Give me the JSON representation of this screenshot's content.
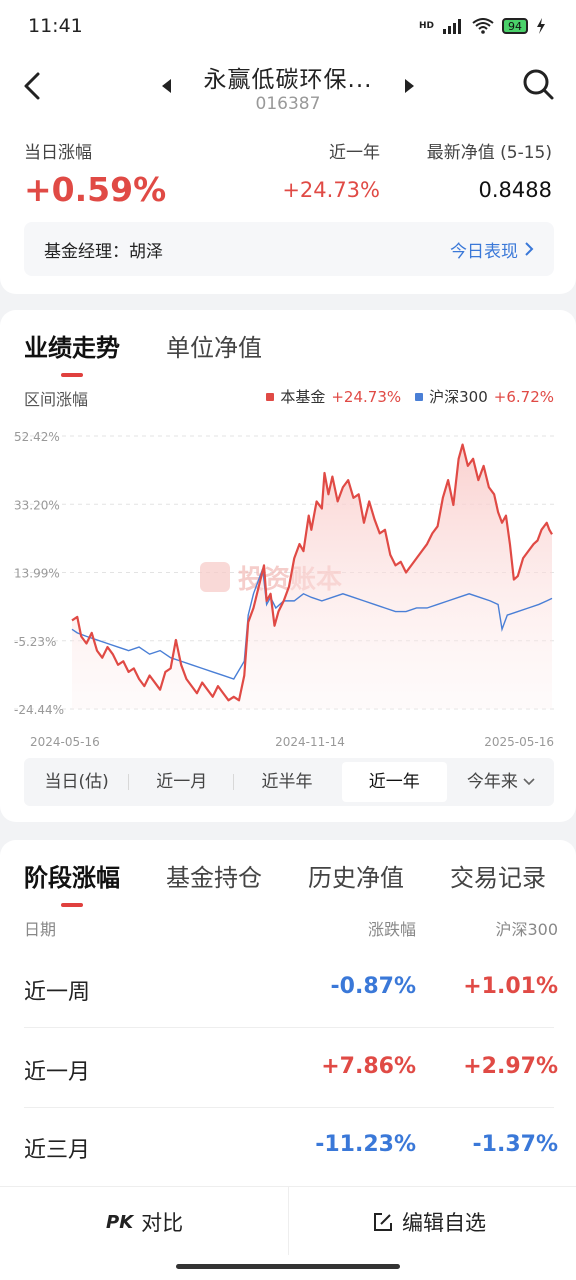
{
  "status": {
    "time": "11:41",
    "network": "HD",
    "battery": "94"
  },
  "header": {
    "title": "永赢低碳环保...",
    "code": "016387"
  },
  "summary": {
    "today_label": "当日涨幅",
    "today_value": "+0.59%",
    "year_label": "近一年",
    "year_value": "+24.73%",
    "nav_label": "最新净值 (5-15)",
    "nav_value": "0.8488",
    "manager_label": "基金经理：胡泽",
    "today_perf_link": "今日表现"
  },
  "chart_tabs": [
    {
      "label": "业绩走势",
      "active": true
    },
    {
      "label": "单位净值",
      "active": false
    }
  ],
  "range_label": "区间涨幅",
  "legend": [
    {
      "name": "本基金",
      "value": "+24.73%",
      "color": "#e04a45"
    },
    {
      "name": "沪深300",
      "value": "+6.72%",
      "color": "#4a7fd6"
    }
  ],
  "watermark": "投资账本",
  "chart_data": {
    "type": "line",
    "ytick_labels": [
      "52.42%",
      "33.20%",
      "13.99%",
      "-5.23%",
      "-24.44%"
    ],
    "yticks": [
      52.42,
      33.2,
      13.99,
      -5.23,
      -24.44
    ],
    "ylim": [
      -24.44,
      52.42
    ],
    "xtick_labels": [
      "2024-05-16",
      "2024-11-14",
      "2025-05-16"
    ],
    "x_start": "2024-05-16",
    "x_end": "2025-05-16",
    "grid": true,
    "series": [
      {
        "name": "本基金",
        "color": "#e04a45",
        "fill": true,
        "points": [
          [
            "2024-05-16",
            0.5
          ],
          [
            "2024-05-20",
            1.5
          ],
          [
            "2024-05-23",
            -4
          ],
          [
            "2024-05-27",
            -6
          ],
          [
            "2024-05-31",
            -3
          ],
          [
            "2024-06-04",
            -8
          ],
          [
            "2024-06-08",
            -10
          ],
          [
            "2024-06-12",
            -7
          ],
          [
            "2024-06-16",
            -9
          ],
          [
            "2024-06-20",
            -12
          ],
          [
            "2024-06-24",
            -11
          ],
          [
            "2024-06-28",
            -14
          ],
          [
            "2024-07-02",
            -13
          ],
          [
            "2024-07-06",
            -16
          ],
          [
            "2024-07-10",
            -18
          ],
          [
            "2024-07-14",
            -15
          ],
          [
            "2024-07-18",
            -17
          ],
          [
            "2024-07-22",
            -19
          ],
          [
            "2024-07-26",
            -14
          ],
          [
            "2024-07-30",
            -13
          ],
          [
            "2024-08-03",
            -5
          ],
          [
            "2024-08-07",
            -12
          ],
          [
            "2024-08-11",
            -16
          ],
          [
            "2024-08-15",
            -18
          ],
          [
            "2024-08-19",
            -20
          ],
          [
            "2024-08-23",
            -17
          ],
          [
            "2024-08-27",
            -19
          ],
          [
            "2024-08-31",
            -21
          ],
          [
            "2024-09-04",
            -18
          ],
          [
            "2024-09-08",
            -20
          ],
          [
            "2024-09-12",
            -22
          ],
          [
            "2024-09-16",
            -21
          ],
          [
            "2024-09-20",
            -22
          ],
          [
            "2024-09-24",
            -15
          ],
          [
            "2024-09-27",
            0
          ],
          [
            "2024-10-01",
            4
          ],
          [
            "2024-10-05",
            10
          ],
          [
            "2024-10-09",
            16
          ],
          [
            "2024-10-11",
            6
          ],
          [
            "2024-10-14",
            8
          ],
          [
            "2024-10-17",
            -1
          ],
          [
            "2024-10-20",
            3
          ],
          [
            "2024-10-24",
            6
          ],
          [
            "2024-10-28",
            10
          ],
          [
            "2024-11-01",
            18
          ],
          [
            "2024-11-05",
            22
          ],
          [
            "2024-11-08",
            20
          ],
          [
            "2024-11-12",
            30
          ],
          [
            "2024-11-14",
            26
          ],
          [
            "2024-11-18",
            34
          ],
          [
            "2024-11-22",
            32
          ],
          [
            "2024-11-24",
            42
          ],
          [
            "2024-11-27",
            36
          ],
          [
            "2024-11-30",
            41
          ],
          [
            "2024-12-04",
            34
          ],
          [
            "2024-12-08",
            38
          ],
          [
            "2024-12-12",
            40
          ],
          [
            "2024-12-16",
            35
          ],
          [
            "2024-12-20",
            36
          ],
          [
            "2024-12-24",
            28
          ],
          [
            "2024-12-28",
            34
          ],
          [
            "2025-01-01",
            29
          ],
          [
            "2025-01-05",
            25
          ],
          [
            "2025-01-09",
            26
          ],
          [
            "2025-01-13",
            19
          ],
          [
            "2025-01-17",
            16
          ],
          [
            "2025-01-21",
            17
          ],
          [
            "2025-01-25",
            14
          ],
          [
            "2025-01-29",
            16
          ],
          [
            "2025-02-02",
            18
          ],
          [
            "2025-02-06",
            20
          ],
          [
            "2025-02-10",
            22
          ],
          [
            "2025-02-14",
            25
          ],
          [
            "2025-02-18",
            27
          ],
          [
            "2025-02-22",
            35
          ],
          [
            "2025-02-26",
            40
          ],
          [
            "2025-03-02",
            33
          ],
          [
            "2025-03-06",
            46
          ],
          [
            "2025-03-09",
            50
          ],
          [
            "2025-03-13",
            44
          ],
          [
            "2025-03-17",
            46
          ],
          [
            "2025-03-21",
            40
          ],
          [
            "2025-03-25",
            44
          ],
          [
            "2025-03-29",
            38
          ],
          [
            "2025-04-02",
            36
          ],
          [
            "2025-04-05",
            31
          ],
          [
            "2025-04-08",
            28
          ],
          [
            "2025-04-11",
            30
          ],
          [
            "2025-04-14",
            22
          ],
          [
            "2025-04-17",
            12
          ],
          [
            "2025-04-20",
            13
          ],
          [
            "2025-04-24",
            18
          ],
          [
            "2025-04-28",
            20
          ],
          [
            "2025-05-02",
            22
          ],
          [
            "2025-05-05",
            23
          ],
          [
            "2025-05-08",
            26
          ],
          [
            "2025-05-12",
            28
          ],
          [
            "2025-05-14",
            26
          ],
          [
            "2025-05-16",
            24.73
          ]
        ]
      },
      {
        "name": "沪深300",
        "color": "#4a7fd6",
        "fill": false,
        "points": [
          [
            "2024-05-16",
            -2
          ],
          [
            "2024-05-20",
            -3
          ],
          [
            "2024-05-27",
            -4
          ],
          [
            "2024-06-04",
            -5
          ],
          [
            "2024-06-12",
            -6
          ],
          [
            "2024-06-20",
            -7
          ],
          [
            "2024-06-28",
            -8
          ],
          [
            "2024-07-06",
            -7
          ],
          [
            "2024-07-14",
            -9
          ],
          [
            "2024-07-22",
            -8
          ],
          [
            "2024-07-30",
            -10
          ],
          [
            "2024-08-07",
            -11
          ],
          [
            "2024-08-15",
            -12
          ],
          [
            "2024-08-23",
            -13
          ],
          [
            "2024-08-31",
            -14
          ],
          [
            "2024-09-08",
            -15
          ],
          [
            "2024-09-16",
            -16
          ],
          [
            "2024-09-24",
            -11
          ],
          [
            "2024-09-27",
            2
          ],
          [
            "2024-10-01",
            8
          ],
          [
            "2024-10-08",
            15
          ],
          [
            "2024-10-11",
            5
          ],
          [
            "2024-10-14",
            7
          ],
          [
            "2024-10-18",
            4
          ],
          [
            "2024-10-24",
            6
          ],
          [
            "2024-11-01",
            6
          ],
          [
            "2024-11-08",
            8
          ],
          [
            "2024-11-14",
            7
          ],
          [
            "2024-11-22",
            6
          ],
          [
            "2024-11-30",
            7
          ],
          [
            "2024-12-08",
            8
          ],
          [
            "2024-12-16",
            7
          ],
          [
            "2024-12-24",
            6
          ],
          [
            "2025-01-01",
            5
          ],
          [
            "2025-01-09",
            4
          ],
          [
            "2025-01-17",
            3
          ],
          [
            "2025-01-25",
            3
          ],
          [
            "2025-02-02",
            4
          ],
          [
            "2025-02-10",
            4
          ],
          [
            "2025-02-18",
            5
          ],
          [
            "2025-02-26",
            6
          ],
          [
            "2025-03-06",
            7
          ],
          [
            "2025-03-14",
            8
          ],
          [
            "2025-03-22",
            7
          ],
          [
            "2025-03-30",
            6
          ],
          [
            "2025-04-05",
            5
          ],
          [
            "2025-04-08",
            -2
          ],
          [
            "2025-04-12",
            2
          ],
          [
            "2025-04-20",
            3
          ],
          [
            "2025-04-28",
            4
          ],
          [
            "2025-05-06",
            5
          ],
          [
            "2025-05-12",
            6
          ],
          [
            "2025-05-16",
            6.72
          ]
        ]
      }
    ]
  },
  "periods": [
    {
      "label": "当日(估)",
      "active": false
    },
    {
      "label": "近一月",
      "active": false
    },
    {
      "label": "近半年",
      "active": false
    },
    {
      "label": "近一年",
      "active": true
    },
    {
      "label": "今年来",
      "active": false
    }
  ],
  "perf_tabs": [
    {
      "label": "阶段涨幅",
      "active": true
    },
    {
      "label": "基金持仓",
      "active": false
    },
    {
      "label": "历史净值",
      "active": false
    },
    {
      "label": "交易记录",
      "active": false
    }
  ],
  "perf_headers": {
    "date": "日期",
    "change": "涨跌幅",
    "index": "沪深300"
  },
  "perf_rows": [
    {
      "name": "近一周",
      "change": "-0.87%",
      "index": "+1.01%"
    },
    {
      "name": "近一月",
      "change": "+7.86%",
      "index": "+2.97%"
    },
    {
      "name": "近三月",
      "change": "-11.23%",
      "index": "-1.37%"
    }
  ],
  "colors": {
    "up": "#e04a45",
    "down": "#3a78d8"
  },
  "bottom": {
    "compare": "对比",
    "compare_icon": "PK",
    "edit": "编辑自选"
  }
}
